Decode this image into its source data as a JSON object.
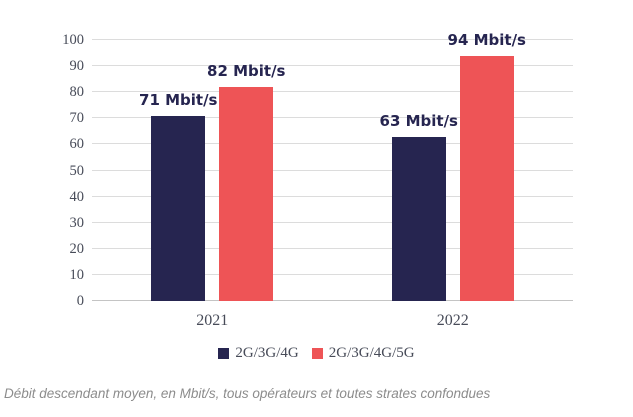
{
  "chart_data": {
    "type": "bar",
    "categories": [
      "2021",
      "2022"
    ],
    "series": [
      {
        "name": "2G/3G/4G",
        "color": "#262550",
        "values": [
          71,
          63
        ],
        "data_labels": [
          "71 Mbit/s",
          "63 Mbit/s"
        ]
      },
      {
        "name": "2G/3G/4G/5G",
        "color": "#ee5456",
        "values": [
          82,
          94
        ],
        "data_labels": [
          "82 Mbit/s",
          "94 Mbit/s"
        ]
      }
    ],
    "title": "",
    "xlabel": "",
    "ylabel": "",
    "ylim": [
      0,
      100
    ],
    "ytick_step": 10,
    "yticks": [
      0,
      10,
      20,
      30,
      40,
      50,
      60,
      70,
      80,
      90,
      100
    ],
    "grid": true,
    "legend_position": "bottom",
    "unit": "Mbit/s"
  },
  "caption": "Débit descendant moyen, en Mbit/s, tous opérateurs et toutes strates confondues",
  "colors": {
    "series_2g3g4g": "#262550",
    "series_2g3g4g5g": "#ee5456",
    "gridline": "#dcdcdc",
    "axis_text": "#474b58",
    "data_label_text": "#262550",
    "caption_text": "#8c8c8c",
    "background": "#ffffff"
  }
}
